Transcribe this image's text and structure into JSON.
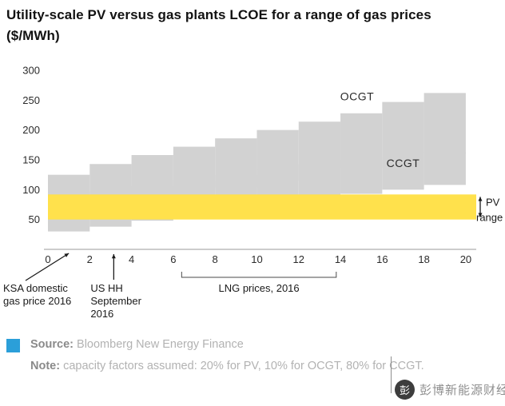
{
  "title": "Utility-scale PV versus gas plants LCOE for a range of gas prices\n($/MWh)",
  "chart_data": {
    "type": "area",
    "title": "Utility-scale PV versus gas plants LCOE for a range of gas prices ($/MWh)",
    "xlim": [
      0,
      20.5
    ],
    "ylim": [
      0,
      300
    ],
    "x_ticks": [
      0,
      2,
      4,
      6,
      8,
      10,
      12,
      14,
      16,
      18,
      20
    ],
    "y_ticks": [
      50,
      100,
      150,
      200,
      250,
      300
    ],
    "grid": false,
    "legend_position": "none",
    "band_color": "#d2d2d2",
    "bins": [
      [
        0,
        2
      ],
      [
        2,
        4
      ],
      [
        4,
        6
      ],
      [
        6,
        8
      ],
      [
        8,
        10
      ],
      [
        10,
        12
      ],
      [
        12,
        14
      ],
      [
        14,
        16
      ],
      [
        16,
        18
      ],
      [
        18,
        20
      ]
    ],
    "series": [
      {
        "name": "OCGT",
        "color": "#d2d2d2",
        "ranges": [
          [
            58,
            125
          ],
          [
            70,
            143
          ],
          [
            82,
            158
          ],
          [
            93,
            172
          ],
          [
            104,
            186
          ],
          [
            115,
            200
          ],
          [
            126,
            214
          ],
          [
            137,
            228
          ],
          [
            148,
            247
          ],
          [
            160,
            262
          ]
        ]
      },
      {
        "name": "CCGT",
        "color": "#d2d2d2",
        "ranges": [
          [
            30,
            88
          ],
          [
            38,
            97
          ],
          [
            48,
            106
          ],
          [
            57,
            115
          ],
          [
            66,
            124
          ],
          [
            75,
            133
          ],
          [
            84,
            142
          ],
          [
            93,
            150
          ],
          [
            100,
            155
          ],
          [
            108,
            163
          ]
        ]
      }
    ],
    "pv_band": {
      "name": "PV range",
      "color": "#ffe14c",
      "min": 50,
      "max": 92
    },
    "series_labels": [
      {
        "id": "ocgt",
        "text": "OCGT",
        "x": 14.8,
        "y": 250
      },
      {
        "id": "ccgt",
        "text": "CCGT",
        "x": 17.0,
        "y": 138
      }
    ],
    "annotations": {
      "ksa": {
        "lines": [
          "KSA domestic",
          "gas price 2016"
        ],
        "target_gas": 1.0
      },
      "us_hh": {
        "lines": [
          "US HH",
          "September",
          "2016"
        ],
        "target_gas": 3.15
      },
      "lng": {
        "text": "LNG prices, 2016",
        "gas_from": 6.4,
        "gas_to": 13.8
      },
      "pv_range": {
        "lines": [
          "PV",
          "range"
        ]
      }
    }
  },
  "footer": {
    "source_label": "Source:",
    "source_text": " Bloomberg New Energy Finance",
    "note_label": "Note:",
    "note_text": " capacity factors assumed: 20% for PV, 10% for OCGT, 80% for CCGT.",
    "brand_color": "#2b9fd9"
  },
  "watermark": {
    "text": "彭博新能源财经",
    "logo_glyph": "彭"
  }
}
